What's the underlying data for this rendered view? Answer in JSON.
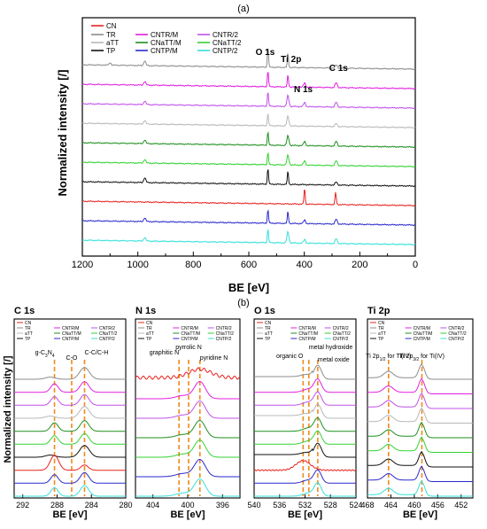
{
  "figure": {
    "panel_a_label": "(a)",
    "panel_b_label": "(b)"
  },
  "series_colors": {
    "CN": "#e8231f",
    "TR": "#8c8c8c",
    "aTT": "#b8b8b8",
    "TP": "#111111",
    "CNTR/M": "#e020e0",
    "CNaTT/M": "#1f8f1f",
    "CNTP/M": "#2a2acc",
    "CNTR/2": "#c050e8",
    "CNaTT/2": "#33d233",
    "CNTP/2": "#33e0d8"
  },
  "legend": [
    {
      "key": "CN",
      "label": "CN"
    },
    {
      "key": "TR",
      "label": "TR"
    },
    {
      "key": "CNTR/M",
      "label": "CNTR/M"
    },
    {
      "key": "CNTR/2",
      "label": "CNTR/2"
    },
    {
      "key": "aTT",
      "label": "aTT"
    },
    {
      "key": "CNaTT/M",
      "label": "CNaTT/M"
    },
    {
      "key": "CNaTT/2",
      "label": "CNaTT/2"
    },
    {
      "key": "TP",
      "label": "TP"
    },
    {
      "key": "CNTP/M",
      "label": "CNTP/M"
    },
    {
      "key": "CNTP/2",
      "label": "CNTP/2"
    }
  ],
  "chart_data": [
    {
      "id": "survey",
      "type": "line",
      "title": "",
      "xlabel": "BE [eV]",
      "ylabel": "Normalized intensity [/]",
      "xlim": [
        1200,
        0
      ],
      "x_reversed": true,
      "x_ticks": [
        1200,
        1000,
        800,
        600,
        400,
        200,
        0
      ],
      "series_order_top_to_bottom": [
        "TR",
        "CNTR/M",
        "CNTR/2",
        "aTT",
        "CNaTT/M",
        "CNaTT/2",
        "TP",
        "CN",
        "CNTP/M",
        "CNTP/2"
      ],
      "peaks": [
        {
          "key": "TR",
          "peaks": [
            {
              "x": 1100,
              "h": 0.2
            },
            {
              "x": 975,
              "h": 0.4
            },
            {
              "x": 531,
              "h": 1.6
            },
            {
              "x": 459,
              "h": 1.2
            },
            {
              "x": 285,
              "h": 0.25
            }
          ]
        },
        {
          "key": "CNTR/M",
          "peaks": [
            {
              "x": 975,
              "h": 0.3
            },
            {
              "x": 531,
              "h": 1.3
            },
            {
              "x": 459,
              "h": 1.0
            },
            {
              "x": 399,
              "h": 0.35
            },
            {
              "x": 285,
              "h": 0.4
            }
          ]
        },
        {
          "key": "CNTR/2",
          "peaks": [
            {
              "x": 975,
              "h": 0.3
            },
            {
              "x": 531,
              "h": 1.2
            },
            {
              "x": 459,
              "h": 0.9
            },
            {
              "x": 399,
              "h": 0.35
            },
            {
              "x": 285,
              "h": 0.4
            }
          ]
        },
        {
          "key": "aTT",
          "peaks": [
            {
              "x": 975,
              "h": 0.3
            },
            {
              "x": 531,
              "h": 1.0
            },
            {
              "x": 459,
              "h": 0.8
            },
            {
              "x": 285,
              "h": 0.25
            }
          ]
        },
        {
          "key": "CNaTT/M",
          "peaks": [
            {
              "x": 975,
              "h": 0.3
            },
            {
              "x": 531,
              "h": 1.1
            },
            {
              "x": 459,
              "h": 0.8
            },
            {
              "x": 399,
              "h": 0.35
            },
            {
              "x": 285,
              "h": 0.4
            }
          ]
        },
        {
          "key": "CNaTT/2",
          "peaks": [
            {
              "x": 975,
              "h": 0.3
            },
            {
              "x": 531,
              "h": 1.0
            },
            {
              "x": 459,
              "h": 0.8
            },
            {
              "x": 399,
              "h": 0.35
            },
            {
              "x": 285,
              "h": 0.4
            }
          ]
        },
        {
          "key": "TP",
          "peaks": [
            {
              "x": 975,
              "h": 0.4
            },
            {
              "x": 531,
              "h": 1.3
            },
            {
              "x": 459,
              "h": 1.1
            },
            {
              "x": 285,
              "h": 0.25
            }
          ]
        },
        {
          "key": "CN",
          "peaks": [
            {
              "x": 399,
              "h": 1.3
            },
            {
              "x": 287,
              "h": 1.0
            }
          ]
        },
        {
          "key": "CNTP/M",
          "peaks": [
            {
              "x": 975,
              "h": 0.3
            },
            {
              "x": 531,
              "h": 1.1
            },
            {
              "x": 459,
              "h": 1.0
            },
            {
              "x": 399,
              "h": 0.3
            },
            {
              "x": 285,
              "h": 0.4
            }
          ]
        },
        {
          "key": "CNTP/2",
          "peaks": [
            {
              "x": 975,
              "h": 0.3
            },
            {
              "x": 531,
              "h": 1.1
            },
            {
              "x": 459,
              "h": 0.9
            },
            {
              "x": 399,
              "h": 0.3
            },
            {
              "x": 285,
              "h": 0.4
            }
          ]
        }
      ],
      "annotations": [
        {
          "text": "O 1s",
          "x": 531
        },
        {
          "text": "Ti 2p",
          "x": 459
        },
        {
          "text": "N 1s",
          "x": 399
        },
        {
          "text": "C 1s",
          "x": 285
        }
      ],
      "grid": false
    },
    {
      "id": "c1s",
      "type": "line",
      "title": "C 1s",
      "xlabel": "BE [eV]",
      "ylabel": "Normalized intensity [/]",
      "xlim": [
        293,
        280
      ],
      "x_reversed": true,
      "x_ticks": [
        292,
        288,
        284,
        280
      ],
      "reference_lines": [
        288.3,
        286.3,
        284.8
      ],
      "annotations": [
        {
          "text": "g-C",
          "sub": "3",
          "text2": "N",
          "sub2": "4",
          "x": 288.3
        },
        {
          "text": "C-O",
          "x": 286.3
        },
        {
          "text": "C-C/C-H",
          "x": 284.8
        }
      ],
      "series_order_top_to_bottom": [
        "TR",
        "CNTR/M",
        "CNTR/2",
        "aTT",
        "CNaTT/M",
        "CNaTT/2",
        "TP",
        "CN",
        "CNTP/M",
        "CNTP/2"
      ]
    },
    {
      "id": "n1s",
      "type": "line",
      "title": "N 1s",
      "xlabel": "BE [eV]",
      "ylabel": "",
      "xlim": [
        406,
        394
      ],
      "x_reversed": true,
      "x_ticks": [
        404,
        400,
        396
      ],
      "reference_lines": [
        401.0,
        399.9,
        398.6
      ],
      "annotations": [
        {
          "text": "graphitic N",
          "x": 401.0
        },
        {
          "text": "pyrrolic N",
          "x": 399.9
        },
        {
          "text": "pyridine N",
          "x": 398.6
        }
      ],
      "series_order_top_to_bottom": [
        "CN",
        "CNTR/M",
        "CNTR/2",
        "CNaTT/M",
        "CNaTT/2",
        "CNTP/M",
        "CNTP/2"
      ]
    },
    {
      "id": "o1s",
      "type": "line",
      "title": "O 1s",
      "xlabel": "BE [eV]",
      "ylabel": "",
      "xlim": [
        540,
        524
      ],
      "x_reversed": true,
      "x_ticks": [
        540,
        536,
        532,
        528,
        524
      ],
      "reference_lines": [
        532.3,
        531.4,
        530.0
      ],
      "annotations": [
        {
          "text": "organic O",
          "x": 532.3
        },
        {
          "text": "metal hydroxide",
          "x": 531.4
        },
        {
          "text": "metal oxide",
          "x": 530.0
        }
      ],
      "series_order_top_to_bottom": [
        "TR",
        "CNTR/M",
        "CNTR/2",
        "aTT",
        "CNaTT/M",
        "CNaTT/2",
        "TP",
        "CN",
        "CNTP/M",
        "CNTP/2"
      ]
    },
    {
      "id": "ti2p",
      "type": "line",
      "title": "Ti 2p",
      "xlabel": "BE [eV]",
      "ylabel": "",
      "xlim": [
        468,
        450
      ],
      "x_reversed": true,
      "x_ticks": [
        468,
        464,
        460,
        456,
        452
      ],
      "reference_lines": [
        464.4,
        458.7
      ],
      "annotations": [
        {
          "text": "Ti 2p",
          "sub": "1/2",
          "text2": " for Ti(IV)",
          "x": 464.4
        },
        {
          "text": "Ti 2p",
          "sub": "3/2",
          "text2": " for Ti(IV)",
          "x": 458.7
        }
      ],
      "series_order_top_to_bottom": [
        "TR",
        "CNTR/M",
        "CNTR/2",
        "aTT",
        "CNaTT/M",
        "CNaTT/2",
        "TP",
        "CNTP/M",
        "CNTP/2"
      ]
    }
  ]
}
